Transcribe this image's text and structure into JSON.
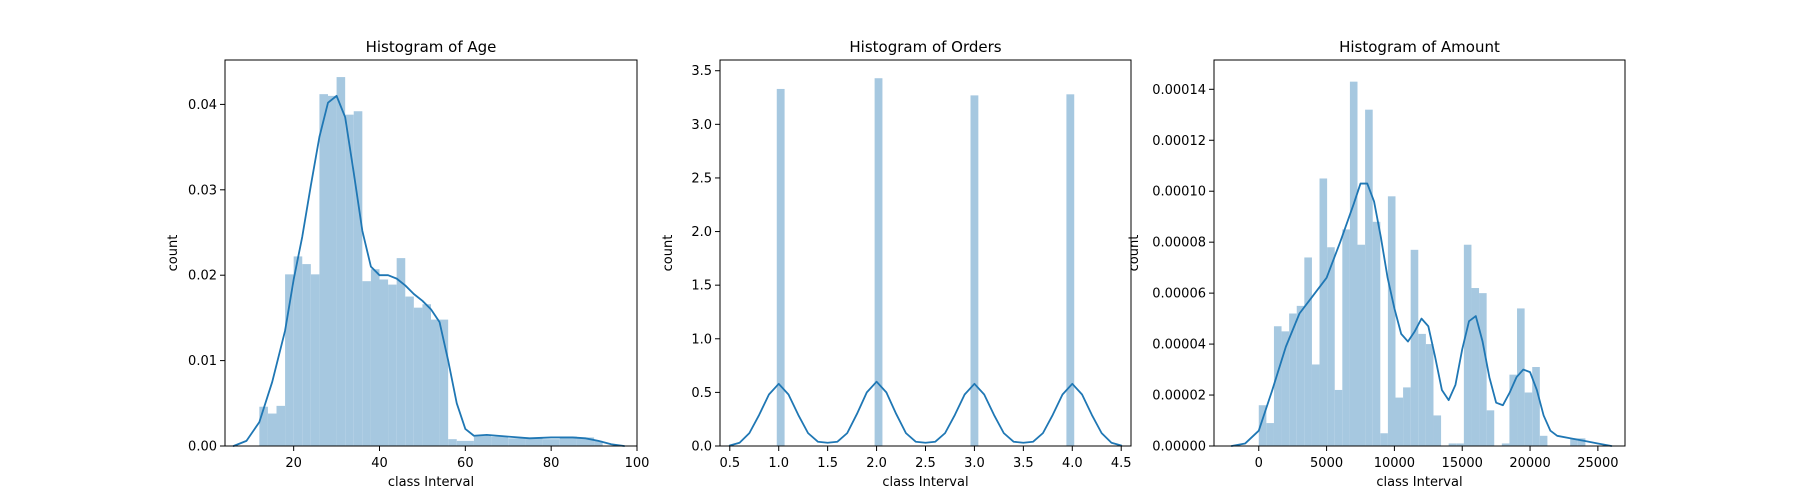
{
  "colors": {
    "bar": "#a6c8e0",
    "kde": "#1f77b4",
    "axis": "#000000",
    "background": "#ffffff"
  },
  "chart_data": [
    {
      "type": "bar",
      "title": "Histogram of Age",
      "xlabel": "class Interval",
      "ylabel": "count",
      "xlim": [
        4,
        100
      ],
      "ylim": [
        0,
        0.0452
      ],
      "xticks": [
        20,
        40,
        60,
        80,
        100
      ],
      "xtick_labels": [
        "20",
        "40",
        "60",
        "80",
        "100"
      ],
      "yticks": [
        0,
        0.01,
        0.02,
        0.03,
        0.04
      ],
      "ytick_labels": [
        "0.00",
        "0.01",
        "0.02",
        "0.03",
        "0.04"
      ],
      "bins": [
        {
          "x0": 12.0,
          "x1": 14.0,
          "value": 0.0046
        },
        {
          "x0": 14.0,
          "x1": 16.0,
          "value": 0.0038
        },
        {
          "x0": 16.0,
          "x1": 18.0,
          "value": 0.0047
        },
        {
          "x0": 18.0,
          "x1": 20.0,
          "value": 0.0201
        },
        {
          "x0": 20.0,
          "x1": 22.0,
          "value": 0.0222
        },
        {
          "x0": 22.0,
          "x1": 24.0,
          "value": 0.0213
        },
        {
          "x0": 24.0,
          "x1": 26.0,
          "value": 0.0201
        },
        {
          "x0": 26.0,
          "x1": 28.0,
          "value": 0.0412
        },
        {
          "x0": 28.0,
          "x1": 30.0,
          "value": 0.041
        },
        {
          "x0": 30.0,
          "x1": 32.0,
          "value": 0.0432
        },
        {
          "x0": 32.0,
          "x1": 34.0,
          "value": 0.0388
        },
        {
          "x0": 34.0,
          "x1": 36.0,
          "value": 0.0392
        },
        {
          "x0": 36.0,
          "x1": 38.0,
          "value": 0.0193
        },
        {
          "x0": 38.0,
          "x1": 40.0,
          "value": 0.0207
        },
        {
          "x0": 40.0,
          "x1": 42.0,
          "value": 0.0195
        },
        {
          "x0": 42.0,
          "x1": 44.0,
          "value": 0.0189
        },
        {
          "x0": 44.0,
          "x1": 46.0,
          "value": 0.022
        },
        {
          "x0": 46.0,
          "x1": 48.0,
          "value": 0.0175
        },
        {
          "x0": 48.0,
          "x1": 50.0,
          "value": 0.0162
        },
        {
          "x0": 50.0,
          "x1": 52.0,
          "value": 0.0166
        },
        {
          "x0": 52.0,
          "x1": 54.0,
          "value": 0.0148
        },
        {
          "x0": 54.0,
          "x1": 56.0,
          "value": 0.0148
        },
        {
          "x0": 56.0,
          "x1": 58.0,
          "value": 0.0008
        },
        {
          "x0": 58.0,
          "x1": 62.0,
          "value": 0.0006
        },
        {
          "x0": 62.0,
          "x1": 66.0,
          "value": 0.0012
        },
        {
          "x0": 66.0,
          "x1": 70.0,
          "value": 0.0011
        },
        {
          "x0": 70.0,
          "x1": 74.0,
          "value": 0.0009
        },
        {
          "x0": 74.0,
          "x1": 78.0,
          "value": 0.001
        },
        {
          "x0": 78.0,
          "x1": 82.0,
          "value": 0.0008
        },
        {
          "x0": 82.0,
          "x1": 86.0,
          "value": 0.0011
        },
        {
          "x0": 86.0,
          "x1": 90.0,
          "value": 0.001
        },
        {
          "x0": 90.0,
          "x1": 92.0,
          "value": 0.0006
        }
      ],
      "kde": {
        "x": [
          6,
          9,
          12,
          15,
          18,
          20,
          22,
          24,
          26,
          28,
          30,
          32,
          34,
          36,
          38,
          40,
          42,
          44,
          46,
          48,
          50,
          52,
          54,
          56,
          58,
          60,
          62,
          65,
          70,
          75,
          80,
          85,
          88,
          91,
          94,
          97
        ],
        "y": [
          0.0,
          0.0006,
          0.0028,
          0.0075,
          0.0135,
          0.0195,
          0.0245,
          0.0305,
          0.0362,
          0.0402,
          0.041,
          0.0385,
          0.032,
          0.0252,
          0.021,
          0.02,
          0.02,
          0.0196,
          0.0188,
          0.0178,
          0.017,
          0.016,
          0.0145,
          0.01,
          0.005,
          0.002,
          0.0012,
          0.0013,
          0.0011,
          0.0009,
          0.001,
          0.001,
          0.0009,
          0.0006,
          0.0002,
          0.0
        ]
      }
    },
    {
      "type": "bar",
      "title": "Histogram of Orders",
      "xlabel": "class Interval",
      "ylabel": "count",
      "xlim": [
        0.4,
        4.6
      ],
      "ylim": [
        0,
        3.6
      ],
      "xticks": [
        0.5,
        1.0,
        1.5,
        2.0,
        2.5,
        3.0,
        3.5,
        4.0,
        4.5
      ],
      "xtick_labels": [
        "0.5",
        "1.0",
        "1.5",
        "2.0",
        "2.5",
        "3.0",
        "3.5",
        "4.0",
        "4.5"
      ],
      "yticks": [
        0,
        0.5,
        1.0,
        1.5,
        2.0,
        2.5,
        3.0,
        3.5
      ],
      "ytick_labels": [
        "0.0",
        "0.5",
        "1.0",
        "1.5",
        "2.0",
        "2.5",
        "3.0",
        "3.5"
      ],
      "bins": [
        {
          "x0": 0.98,
          "x1": 1.06,
          "value": 3.33
        },
        {
          "x0": 1.98,
          "x1": 2.06,
          "value": 3.43
        },
        {
          "x0": 2.96,
          "x1": 3.04,
          "value": 3.27
        },
        {
          "x0": 3.94,
          "x1": 4.02,
          "value": 3.28
        }
      ],
      "kde": {
        "x": [
          0.5,
          0.6,
          0.7,
          0.8,
          0.9,
          1.0,
          1.1,
          1.2,
          1.3,
          1.4,
          1.5,
          1.6,
          1.7,
          1.8,
          1.9,
          2.0,
          2.1,
          2.2,
          2.3,
          2.4,
          2.5,
          2.6,
          2.7,
          2.8,
          2.9,
          3.0,
          3.1,
          3.2,
          3.3,
          3.4,
          3.5,
          3.6,
          3.7,
          3.8,
          3.9,
          4.0,
          4.1,
          4.2,
          4.3,
          4.4,
          4.5
        ],
        "y": [
          0.005,
          0.03,
          0.12,
          0.29,
          0.48,
          0.58,
          0.48,
          0.29,
          0.12,
          0.04,
          0.03,
          0.04,
          0.12,
          0.3,
          0.5,
          0.6,
          0.5,
          0.3,
          0.12,
          0.04,
          0.03,
          0.04,
          0.12,
          0.29,
          0.48,
          0.58,
          0.48,
          0.29,
          0.12,
          0.04,
          0.03,
          0.04,
          0.12,
          0.29,
          0.48,
          0.58,
          0.48,
          0.29,
          0.12,
          0.03,
          0.005
        ]
      }
    },
    {
      "type": "bar",
      "title": "Histogram of Amount",
      "xlabel": "class Interval",
      "ylabel": "count",
      "xlim": [
        -3300,
        27000
      ],
      "ylim": [
        0,
        0.0001515
      ],
      "xticks": [
        0,
        5000,
        10000,
        15000,
        20000,
        25000
      ],
      "xtick_labels": [
        "0",
        "5000",
        "10000",
        "15000",
        "20000",
        "25000"
      ],
      "yticks": [
        0,
        2e-05,
        4e-05,
        6e-05,
        8e-05,
        0.0001,
        0.00012,
        0.00014
      ],
      "ytick_labels": [
        "0.00000",
        "0.00002",
        "0.00004",
        "0.00006",
        "0.00008",
        "0.00010",
        "0.00012",
        "0.00014"
      ],
      "bins": [
        {
          "x0": 0,
          "x1": 560,
          "value": 1.6e-05
        },
        {
          "x0": 560,
          "x1": 1120,
          "value": 9e-06
        },
        {
          "x0": 1120,
          "x1": 1680,
          "value": 4.7e-05
        },
        {
          "x0": 1680,
          "x1": 2240,
          "value": 4.5e-05
        },
        {
          "x0": 2240,
          "x1": 2800,
          "value": 5.2e-05
        },
        {
          "x0": 2800,
          "x1": 3360,
          "value": 5.5e-05
        },
        {
          "x0": 3360,
          "x1": 3920,
          "value": 7.4e-05
        },
        {
          "x0": 3920,
          "x1": 4480,
          "value": 3.2e-05
        },
        {
          "x0": 4480,
          "x1": 5040,
          "value": 0.000105
        },
        {
          "x0": 5040,
          "x1": 5600,
          "value": 7.8e-05
        },
        {
          "x0": 5600,
          "x1": 6160,
          "value": 2.2e-05
        },
        {
          "x0": 6160,
          "x1": 6720,
          "value": 8.5e-05
        },
        {
          "x0": 6720,
          "x1": 7280,
          "value": 0.000143
        },
        {
          "x0": 7280,
          "x1": 7840,
          "value": 7.9e-05
        },
        {
          "x0": 7840,
          "x1": 8400,
          "value": 0.000132
        },
        {
          "x0": 8400,
          "x1": 8960,
          "value": 8.8e-05
        },
        {
          "x0": 8960,
          "x1": 9520,
          "value": 5e-06
        },
        {
          "x0": 9520,
          "x1": 10080,
          "value": 9.8e-05
        },
        {
          "x0": 10080,
          "x1": 10640,
          "value": 1.9e-05
        },
        {
          "x0": 10640,
          "x1": 11200,
          "value": 2.3e-05
        },
        {
          "x0": 11200,
          "x1": 11760,
          "value": 7.7e-05
        },
        {
          "x0": 11760,
          "x1": 12320,
          "value": 4.4e-05
        },
        {
          "x0": 12320,
          "x1": 12880,
          "value": 4e-05
        },
        {
          "x0": 12880,
          "x1": 13440,
          "value": 1.2e-05
        },
        {
          "x0": 13440,
          "x1": 14000,
          "value": 0.0
        },
        {
          "x0": 14000,
          "x1": 14560,
          "value": 1e-06
        },
        {
          "x0": 14560,
          "x1": 15120,
          "value": 1e-06
        },
        {
          "x0": 15120,
          "x1": 15680,
          "value": 7.9e-05
        },
        {
          "x0": 15680,
          "x1": 16240,
          "value": 6.2e-05
        },
        {
          "x0": 16240,
          "x1": 16800,
          "value": 6e-05
        },
        {
          "x0": 16800,
          "x1": 17360,
          "value": 1.4e-05
        },
        {
          "x0": 17360,
          "x1": 17920,
          "value": 0.0
        },
        {
          "x0": 17920,
          "x1": 18480,
          "value": 1e-06
        },
        {
          "x0": 18480,
          "x1": 19040,
          "value": 2.8e-05
        },
        {
          "x0": 19040,
          "x1": 19600,
          "value": 5.4e-05
        },
        {
          "x0": 19600,
          "x1": 20160,
          "value": 2.1e-05
        },
        {
          "x0": 20160,
          "x1": 20720,
          "value": 3.1e-05
        },
        {
          "x0": 20720,
          "x1": 21280,
          "value": 4e-06
        },
        {
          "x0": 21280,
          "x1": 21840,
          "value": 0.0
        },
        {
          "x0": 21840,
          "x1": 22400,
          "value": 0.0
        },
        {
          "x0": 22400,
          "x1": 22960,
          "value": 0.0
        },
        {
          "x0": 22960,
          "x1": 23520,
          "value": 3e-06
        },
        {
          "x0": 23520,
          "x1": 24080,
          "value": 3e-06
        }
      ],
      "kde": {
        "x": [
          -2000,
          -1000,
          0,
          1000,
          2000,
          3000,
          4000,
          5000,
          6000,
          7000,
          7500,
          8000,
          8500,
          9000,
          9500,
          10000,
          10500,
          11000,
          11500,
          12000,
          12500,
          13000,
          13500,
          14000,
          14500,
          15000,
          15500,
          16000,
          16500,
          17000,
          17500,
          18000,
          18500,
          19000,
          19500,
          20000,
          20500,
          21000,
          21500,
          22000,
          23000,
          24000,
          25000,
          26000
        ],
        "y": [
          0.0,
          1e-06,
          6e-06,
          2.2e-05,
          3.9e-05,
          5.2e-05,
          5.9e-05,
          6.6e-05,
          8e-05,
          9.5e-05,
          0.000103,
          0.000103,
          9.6e-05,
          8.2e-05,
          6.6e-05,
          5.4e-05,
          4.4e-05,
          4.1e-05,
          4.5e-05,
          5e-05,
          4.7e-05,
          3.5e-05,
          2.2e-05,
          1.8e-05,
          2.4e-05,
          3.8e-05,
          4.9e-05,
          5.1e-05,
          4.1e-05,
          2.7e-05,
          1.7e-05,
          1.6e-05,
          2.1e-05,
          2.7e-05,
          3e-05,
          2.9e-05,
          2.2e-05,
          1.2e-05,
          6e-06,
          4e-06,
          3e-06,
          2e-06,
          1e-06,
          0.0
        ]
      }
    }
  ]
}
